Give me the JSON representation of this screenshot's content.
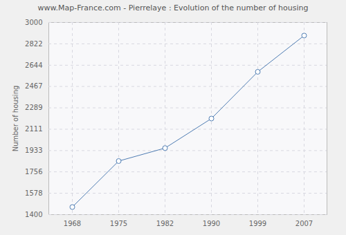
{
  "chart_data": {
    "type": "line",
    "title": "www.Map-France.com - Pierrelaye : Evolution of the number of housing",
    "y_label": "Number of housing",
    "categories": [
      "1968",
      "1975",
      "1982",
      "1990",
      "1999",
      "2007"
    ],
    "values": [
      1463,
      1846,
      1954,
      2200,
      2589,
      2891
    ],
    "color": "#4f7db3",
    "marker": "circle",
    "ylim": [
      1400,
      3000
    ],
    "yticks": [
      1400,
      1578,
      1756,
      1933,
      2111,
      2289,
      2467,
      2644,
      2822,
      3000
    ],
    "grid": true
  }
}
